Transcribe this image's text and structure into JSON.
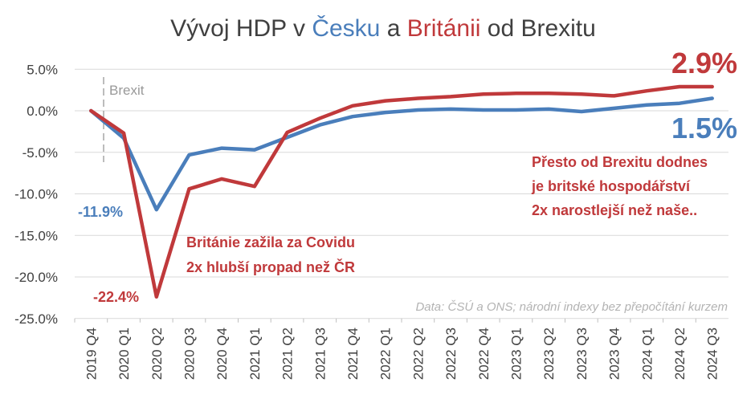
{
  "colors": {
    "czech": "#4a7ebb",
    "britain": "#c0393b",
    "text": "#404040",
    "grid": "#d9d9d9",
    "source": "#b3b3b3",
    "brexit": "#999999"
  },
  "title": {
    "part1": "Vývoj HDP v ",
    "czech": "Česku",
    "part2": " a ",
    "britain": "Británii",
    "part3": " od Brexitu"
  },
  "chart_data": {
    "type": "line",
    "categories": [
      "2019 Q4",
      "2020 Q1",
      "2020 Q2",
      "2020 Q3",
      "2020 Q4",
      "2021 Q1",
      "2021 Q2",
      "2021 Q3",
      "2021 Q4",
      "2022 Q1",
      "2022 Q2",
      "2022 Q3",
      "2022 Q4",
      "2023 Q1",
      "2023 Q2",
      "2023 Q3",
      "2023 Q4",
      "2024 Q1",
      "2024 Q2",
      "2024 Q3"
    ],
    "series": [
      {
        "name": "Česko",
        "color": "#4a7ebb",
        "values": [
          0.0,
          -3.3,
          -11.9,
          -5.3,
          -4.5,
          -4.7,
          -3.2,
          -1.7,
          -0.7,
          -0.2,
          0.1,
          0.2,
          0.1,
          0.1,
          0.2,
          -0.1,
          0.3,
          0.7,
          0.9,
          1.5
        ]
      },
      {
        "name": "Británie",
        "color": "#c0393b",
        "values": [
          0.0,
          -2.7,
          -22.4,
          -9.4,
          -8.2,
          -9.1,
          -2.6,
          -0.9,
          0.6,
          1.2,
          1.5,
          1.7,
          2.0,
          2.1,
          2.1,
          2.0,
          1.8,
          2.4,
          2.9,
          2.9
        ]
      }
    ],
    "ylim": [
      -25,
      5
    ],
    "yticks": [
      "5.0%",
      "0.0%",
      "-5.0%",
      "-10.0%",
      "-15.0%",
      "-20.0%",
      "-25.0%"
    ],
    "ytick_values": [
      5,
      0,
      -5,
      -10,
      -15,
      -20,
      -25
    ],
    "grid": true,
    "brexit_marker": "Brexit",
    "data_labels": {
      "czech_min": "-11.9%",
      "britain_min": "-22.4%",
      "britain_end": "2.9%",
      "czech_end": "1.5%"
    },
    "annotations": {
      "covid": [
        "Británie zažila za Covidu",
        "2x hlubší propad než ČR"
      ],
      "brexit": [
        "Přesto od Brexitu dodnes",
        "je britské hospodářství",
        "2x narostlejší než naše.."
      ]
    },
    "source": "Data: ČSÚ a ONS; národní indexy bez přepočítání kurzem"
  }
}
